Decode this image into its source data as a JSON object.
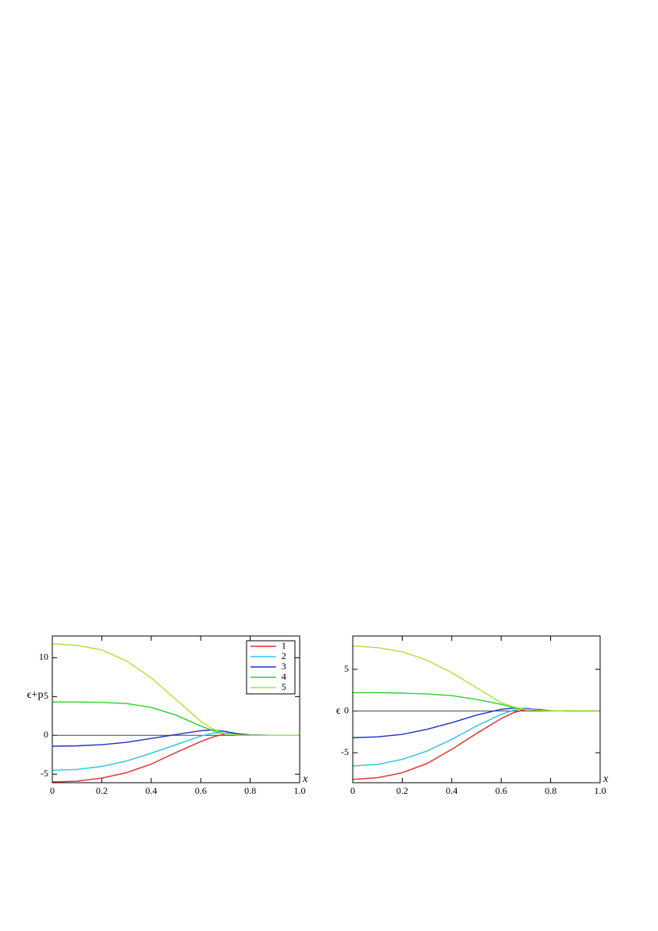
{
  "chart_data": [
    {
      "type": "line",
      "xlabel": "x",
      "ylabel": "ϵ+p",
      "x": [
        0,
        0.1,
        0.2,
        0.3,
        0.4,
        0.5,
        0.6,
        0.65,
        0.7,
        0.75,
        0.8,
        0.9,
        1.0
      ],
      "xlim": [
        0,
        1
      ],
      "xticks": [
        0,
        0.2,
        0.4,
        0.6,
        0.8,
        {
          "value": 1,
          "label": "1.0"
        }
      ],
      "ylim": [
        -6.1,
        12.8
      ],
      "yticks": [
        -5,
        0,
        5,
        10
      ],
      "zero_line": true,
      "legend": "upper right",
      "series": [
        {
          "name": "1",
          "color": "#e8262b",
          "values": [
            -6.0,
            -5.9,
            -5.5,
            -4.8,
            -3.7,
            -2.2,
            -0.8,
            -0.2,
            0.2,
            0.2,
            0.05,
            0,
            0
          ]
        },
        {
          "name": "2",
          "color": "#29c5e8",
          "values": [
            -4.5,
            -4.4,
            -4.0,
            -3.3,
            -2.3,
            -1.2,
            -0.1,
            0.3,
            0.3,
            0.15,
            0.05,
            0,
            0
          ]
        },
        {
          "name": "3",
          "color": "#2030c8",
          "values": [
            -1.4,
            -1.35,
            -1.2,
            -0.9,
            -0.4,
            0.1,
            0.6,
            0.7,
            0.5,
            0.2,
            0.05,
            0,
            0
          ]
        },
        {
          "name": "4",
          "color": "#2ed12e",
          "values": [
            4.3,
            4.3,
            4.25,
            4.1,
            3.6,
            2.6,
            1.2,
            0.6,
            0.2,
            0.05,
            0,
            0,
            0
          ]
        },
        {
          "name": "5",
          "color": "#a8e632",
          "values": [
            11.8,
            11.6,
            11.0,
            9.6,
            7.4,
            4.6,
            1.8,
            0.8,
            0.2,
            0.05,
            0,
            0,
            0
          ]
        }
      ]
    },
    {
      "type": "line",
      "xlabel": "x",
      "ylabel": "ϵ",
      "x": [
        0,
        0.1,
        0.2,
        0.3,
        0.4,
        0.5,
        0.6,
        0.65,
        0.7,
        0.75,
        0.8,
        0.9,
        1.0
      ],
      "xlim": [
        0,
        1
      ],
      "xticks": [
        0,
        0.2,
        0.4,
        0.6,
        0.8,
        {
          "value": 1,
          "label": "1.0"
        }
      ],
      "ylim": [
        -8.6,
        9
      ],
      "yticks": [
        -5,
        0,
        5
      ],
      "zero_line": true,
      "series": [
        {
          "color": "#e8262b",
          "values": [
            -8.2,
            -8.0,
            -7.4,
            -6.3,
            -4.6,
            -2.7,
            -0.9,
            -0.2,
            0.2,
            0.2,
            0.05,
            0,
            0
          ]
        },
        {
          "color": "#29c5e8",
          "values": [
            -6.6,
            -6.4,
            -5.8,
            -4.8,
            -3.4,
            -1.8,
            -0.4,
            0.1,
            0.3,
            0.15,
            0.05,
            0,
            0
          ]
        },
        {
          "color": "#2030c8",
          "values": [
            -3.2,
            -3.1,
            -2.8,
            -2.2,
            -1.4,
            -0.5,
            0.2,
            0.35,
            0.3,
            0.15,
            0.05,
            0,
            0
          ]
        },
        {
          "color": "#2ed12e",
          "values": [
            2.2,
            2.2,
            2.15,
            2.05,
            1.85,
            1.4,
            0.8,
            0.4,
            0.2,
            0.1,
            0.05,
            0,
            0
          ]
        },
        {
          "color": "#a8e632",
          "values": [
            7.8,
            7.6,
            7.1,
            6.1,
            4.6,
            2.8,
            1.0,
            0.5,
            0.2,
            0.1,
            0.05,
            0,
            0
          ]
        }
      ]
    }
  ]
}
